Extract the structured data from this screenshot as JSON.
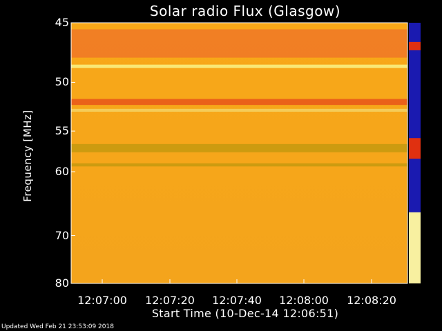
{
  "chart_data": {
    "type": "heatmap",
    "title": "Solar radio Flux (Glasgow)",
    "ylabel": "Frequency [MHz]",
    "xlabel": "Start Time (10-Dec-14 12:06:51)",
    "y_scale": "reciprocal",
    "ylim": [
      45,
      80
    ],
    "yticks": [
      {
        "value": 45,
        "label": "45"
      },
      {
        "value": 50,
        "label": "50"
      },
      {
        "value": 55,
        "label": "55"
      },
      {
        "value": 60,
        "label": "60"
      },
      {
        "value": 70,
        "label": "70"
      },
      {
        "value": 80,
        "label": "80"
      }
    ],
    "xticks": [
      "12:07:00",
      "12:07:20",
      "12:07:40",
      "12:08:00",
      "12:08:20"
    ],
    "colors": {
      "background": "#000000",
      "base": "#f4a41c",
      "band_hot": "#f07a26",
      "band_line": "#f8f080",
      "band_olive": "#c89a10",
      "scale_strip_blue": "#1a1ab0",
      "scale_strip_hot": "#e03010"
    },
    "bands": [
      {
        "from_mhz": 45.5,
        "to_mhz": 47.8,
        "color": "#f07a26"
      },
      {
        "from_mhz": 48.4,
        "to_mhz": 48.7,
        "color": "#f8f080"
      },
      {
        "from_mhz": 51.6,
        "to_mhz": 52.2,
        "color": "#e85a1a"
      },
      {
        "from_mhz": 52.6,
        "to_mhz": 52.9,
        "color": "#f4d060"
      },
      {
        "from_mhz": 56.5,
        "to_mhz": 57.5,
        "color": "#c89a10"
      },
      {
        "from_mhz": 58.9,
        "to_mhz": 59.3,
        "color": "#c89a10"
      }
    ]
  },
  "footer": "Updated Wed Feb 21 23:53:09 2018"
}
